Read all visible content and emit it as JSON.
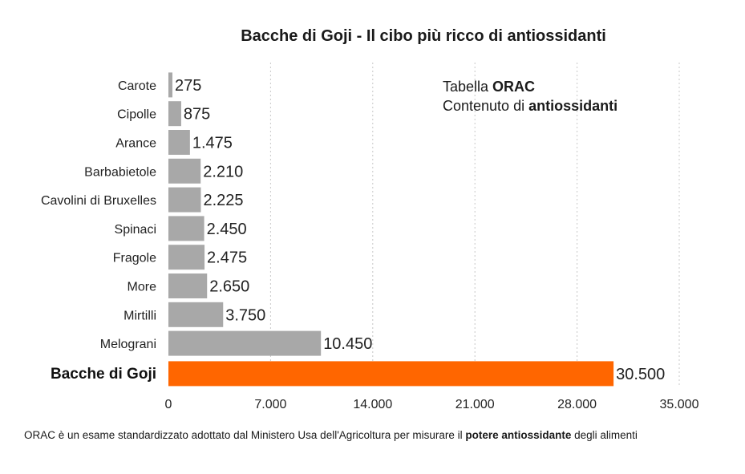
{
  "chart_data": {
    "type": "bar",
    "orientation": "horizontal",
    "title": "Bacche di Goji - Il cibo più ricco di antiossidanti",
    "categories": [
      "Carote",
      "Cipolle",
      "Arance",
      "Barbabietole",
      "Cavolini di Bruxelles",
      "Spinaci",
      "Fragole",
      "More",
      "Mirtilli",
      "Melograni",
      "Bacche di Goji"
    ],
    "values": [
      275,
      875,
      1475,
      2210,
      2225,
      2450,
      2475,
      2650,
      3750,
      10450,
      30500
    ],
    "value_labels": [
      "275",
      "875",
      "1.475",
      "2.210",
      "2.225",
      "2.450",
      "2.475",
      "2.650",
      "3.750",
      "10.450",
      "30.500"
    ],
    "highlight_index": 10,
    "xlim": [
      0,
      35000
    ],
    "x_ticks": [
      0,
      7000,
      14000,
      21000,
      28000,
      35000
    ],
    "x_tick_labels": [
      "0",
      "7.000",
      "14.000",
      "21.000",
      "28.000",
      "35.000"
    ],
    "xlabel": "",
    "ylabel": "",
    "grid": "vertical dotted",
    "colors": {
      "bar": "#a8a8a8",
      "highlight": "#ff6600",
      "grid": "#c8c8c8"
    },
    "annotation": {
      "line1_prefix": "Tabella ",
      "line1_bold": "ORAC",
      "line2_prefix": "Contenuto di ",
      "line2_bold": "antiossidanti"
    }
  },
  "footnote": {
    "prefix": "ORAC è un esame standardizzato adottato dal Ministero Usa dell'Agricoltura per misurare il ",
    "bold": "potere antiossidante",
    "suffix": " degli alimenti"
  }
}
